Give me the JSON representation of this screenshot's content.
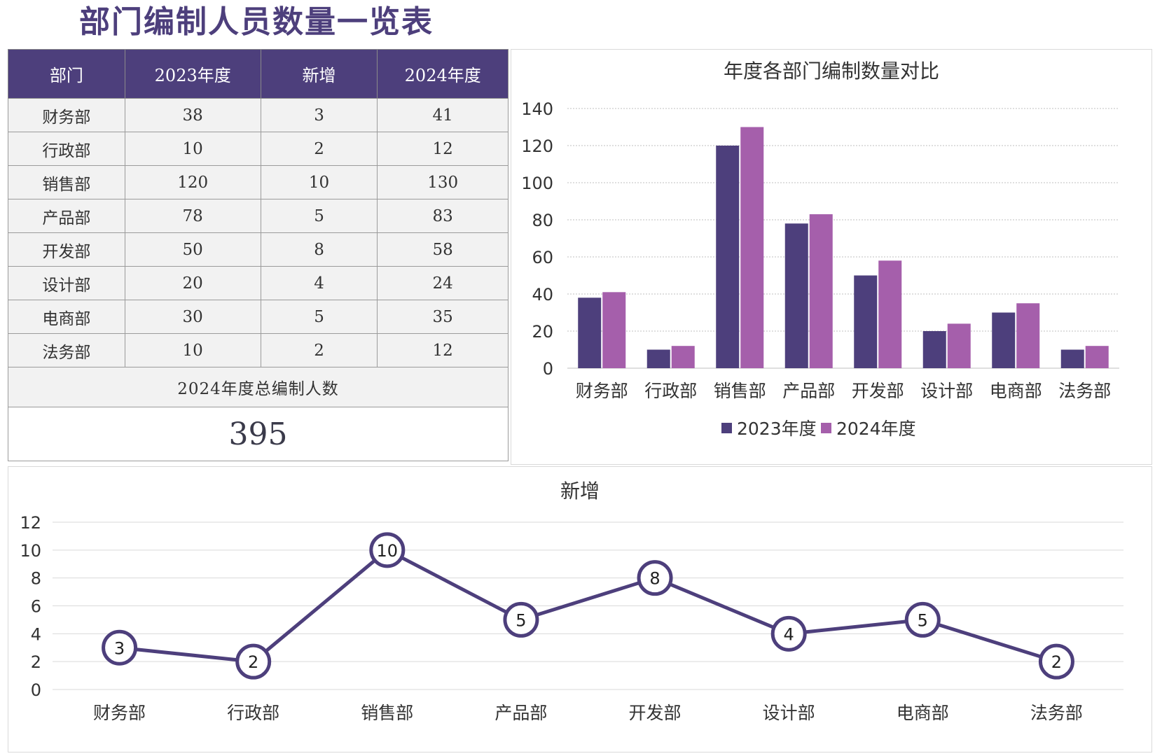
{
  "page_title": "部门编制人员数量一览表",
  "table": {
    "headers": [
      "部门",
      "2023年度",
      "新增",
      "2024年度"
    ],
    "rows": [
      [
        "财务部",
        "38",
        "3",
        "41"
      ],
      [
        "行政部",
        "10",
        "2",
        "12"
      ],
      [
        "销售部",
        "120",
        "10",
        "130"
      ],
      [
        "产品部",
        "78",
        "5",
        "83"
      ],
      [
        "开发部",
        "50",
        "8",
        "58"
      ],
      [
        "设计部",
        "20",
        "4",
        "24"
      ],
      [
        "电商部",
        "30",
        "5",
        "35"
      ],
      [
        "法务部",
        "10",
        "2",
        "12"
      ]
    ],
    "total_label": "2024年度总编制人数",
    "total_value": "395"
  },
  "colors": {
    "series_2023": "#4d3f7c",
    "series_2024": "#a55fab",
    "line": "#4d3f7c",
    "header_bg": "#4d3f7c"
  },
  "chart_data": [
    {
      "type": "bar",
      "title": "年度各部门编制数量对比",
      "categories": [
        "财务部",
        "行政部",
        "销售部",
        "产品部",
        "开发部",
        "设计部",
        "电商部",
        "法务部"
      ],
      "series": [
        {
          "name": "2023年度",
          "values": [
            38,
            10,
            120,
            78,
            50,
            20,
            30,
            10
          ]
        },
        {
          "name": "2024年度",
          "values": [
            41,
            12,
            130,
            83,
            58,
            24,
            35,
            12
          ]
        }
      ],
      "ylim": [
        0,
        140
      ],
      "yticks": [
        0,
        20,
        40,
        60,
        80,
        100,
        120,
        140
      ],
      "grid": true,
      "legend": "bottom"
    },
    {
      "type": "line",
      "title": "新增",
      "categories": [
        "财务部",
        "行政部",
        "销售部",
        "产品部",
        "开发部",
        "设计部",
        "电商部",
        "法务部"
      ],
      "values": [
        3,
        2,
        10,
        5,
        8,
        4,
        5,
        2
      ],
      "ylim": [
        0,
        12
      ],
      "yticks": [
        0,
        2,
        4,
        6,
        8,
        10,
        12
      ],
      "grid": true,
      "data_labels": true
    }
  ]
}
